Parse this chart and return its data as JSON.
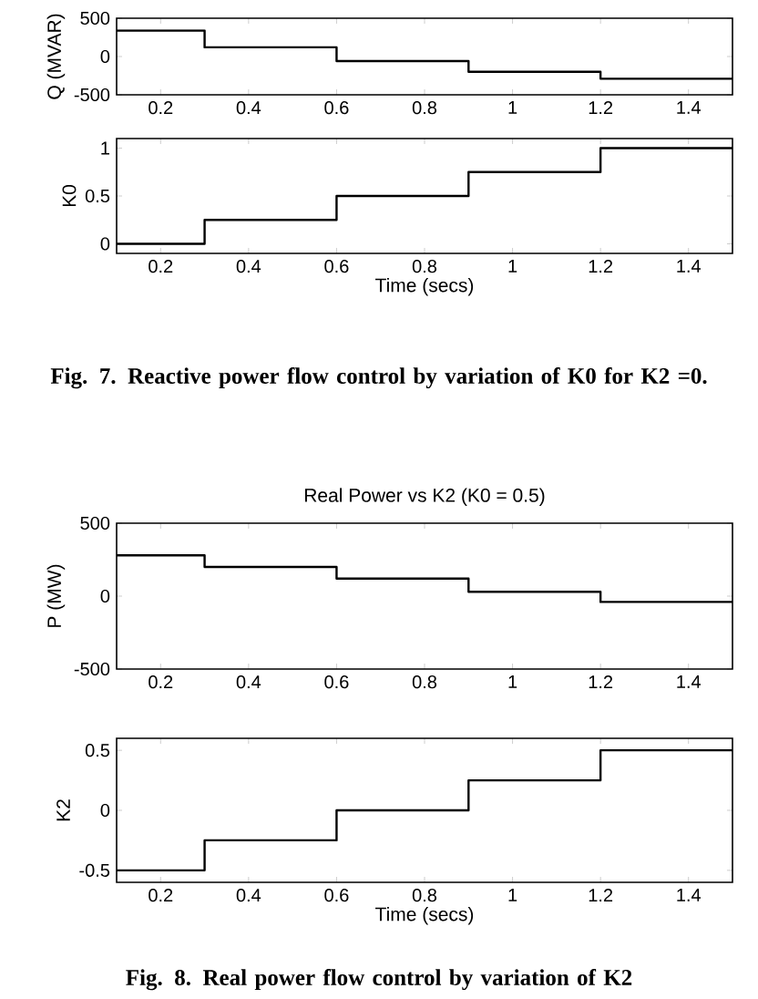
{
  "chart_data": [
    {
      "type": "step",
      "ylabel": "Q (MVAR)",
      "x": [
        0.1,
        0.3,
        0.6,
        0.9,
        1.2,
        1.5
      ],
      "xlim": [
        0.1,
        1.5
      ],
      "xticks": [
        0.2,
        0.4,
        0.6,
        0.8,
        1,
        1.2,
        1.4
      ],
      "ylim": [
        -500,
        500
      ],
      "yticks": [
        -500,
        0,
        500
      ],
      "series": [
        {
          "color": "#000000",
          "values": [
            340,
            120,
            -60,
            -200,
            -290,
            -290
          ]
        }
      ]
    },
    {
      "type": "step",
      "ylabel": "K0",
      "xlabel": "Time (secs)",
      "x": [
        0.1,
        0.3,
        0.6,
        0.9,
        1.2,
        1.5
      ],
      "xlim": [
        0.1,
        1.5
      ],
      "xticks": [
        0.2,
        0.4,
        0.6,
        0.8,
        1,
        1.2,
        1.4
      ],
      "ylim": [
        -0.1,
        1.1
      ],
      "yticks": [
        0,
        0.5,
        1
      ],
      "annotations": [
        "Fig. 7.  Reactive power flow control by variation of K0 for K2 =0."
      ],
      "series": [
        {
          "color": "#000000",
          "values": [
            0,
            0.25,
            0.5,
            0.75,
            1,
            1
          ]
        }
      ]
    },
    {
      "type": "step",
      "title": "Real Power vs K2 (K0 = 0.5)",
      "ylabel": "P (MW)",
      "x": [
        0.1,
        0.3,
        0.6,
        0.9,
        1.2,
        1.5
      ],
      "xlim": [
        0.1,
        1.5
      ],
      "xticks": [
        0.2,
        0.4,
        0.6,
        0.8,
        1,
        1.2,
        1.4
      ],
      "ylim": [
        -500,
        500
      ],
      "yticks": [
        -500,
        0,
        500
      ],
      "series": [
        {
          "color": "#000000",
          "values": [
            280,
            200,
            120,
            30,
            -40,
            -40
          ]
        }
      ]
    },
    {
      "type": "step",
      "ylabel": "K2",
      "xlabel": "Time (secs)",
      "x": [
        0.1,
        0.3,
        0.6,
        0.9,
        1.2,
        1.5
      ],
      "xlim": [
        0.1,
        1.5
      ],
      "xticks": [
        0.2,
        0.4,
        0.6,
        0.8,
        1,
        1.2,
        1.4
      ],
      "ylim": [
        -0.6,
        0.6
      ],
      "yticks": [
        -0.5,
        0,
        0.5
      ],
      "annotations": [
        "Fig. 8.  Real power flow control by variation of K2"
      ],
      "series": [
        {
          "color": "#000000",
          "values": [
            -0.5,
            -0.25,
            0,
            0.25,
            0.5,
            0.5
          ]
        }
      ]
    }
  ]
}
